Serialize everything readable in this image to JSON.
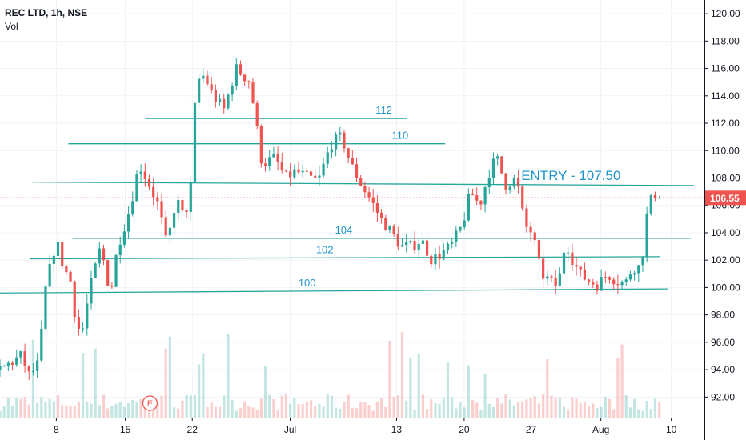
{
  "legend": {
    "symbol": "REC LTD, 1h, NSE",
    "volume_label": "Vol"
  },
  "colors": {
    "up": "#26a69a",
    "down": "#ef5350",
    "line": "#26a69a",
    "label": "#2196c9",
    "price_marker": "#ef5350",
    "grid": "#f0f3fa",
    "axis_text": "#131722",
    "earnings": "#ef5350"
  },
  "chart_data": {
    "type": "candlestick",
    "ylim": [
      90.5,
      121
    ],
    "y_ticks": [
      "92.00",
      "94.00",
      "96.00",
      "98.00",
      "100.00",
      "102.00",
      "104.00",
      "106.00",
      "108.00",
      "110.00",
      "112.00",
      "114.00",
      "116.00",
      "118.00",
      "120.00"
    ],
    "x_ticks": [
      {
        "label": "8",
        "pos": 0.08
      },
      {
        "label": "15",
        "pos": 0.178
      },
      {
        "label": "22",
        "pos": 0.273
      },
      {
        "label": "Jul",
        "pos": 0.412
      },
      {
        "label": "13",
        "pos": 0.563
      },
      {
        "label": "20",
        "pos": 0.659
      },
      {
        "label": "27",
        "pos": 0.754
      },
      {
        "label": "Aug",
        "pos": 0.853
      },
      {
        "label": "10",
        "pos": 0.953
      }
    ],
    "current_price": {
      "label": "106.55",
      "value": 106.55
    },
    "entry_label": "ENTRY - 107.50",
    "earnings_marker": {
      "label": "E",
      "pos": 0.213
    },
    "levels": [
      {
        "label": "112",
        "start": 0.206,
        "end": 0.578,
        "y0": 112.35,
        "y1": 112.35,
        "label_pos": 0.545
      },
      {
        "label": "110",
        "start": 0.097,
        "end": 0.632,
        "y0": 110.5,
        "y1": 110.5,
        "label_pos": 0.568
      },
      {
        "label": "",
        "start": 0.045,
        "end": 0.985,
        "y0": 107.7,
        "y1": 107.45
      },
      {
        "label": "104",
        "start": 0.103,
        "end": 0.98,
        "y0": 103.6,
        "y1": 103.6,
        "label_pos": 0.488
      },
      {
        "label": "102",
        "start": 0.042,
        "end": 0.937,
        "y0": 102.1,
        "y1": 102.25,
        "label_pos": 0.461
      },
      {
        "label": "100",
        "start": 0.0,
        "end": 0.948,
        "y0": 99.6,
        "y1": 99.9,
        "label_pos": 0.436
      }
    ],
    "anchors": [
      [
        0.0,
        94.0
      ],
      [
        0.03,
        95.0
      ],
      [
        0.042,
        93.5
      ],
      [
        0.055,
        94.5
      ],
      [
        0.065,
        100.0
      ],
      [
        0.08,
        103.5
      ],
      [
        0.09,
        101.5
      ],
      [
        0.1,
        100.5
      ],
      [
        0.108,
        97.5
      ],
      [
        0.116,
        96.5
      ],
      [
        0.128,
        100.0
      ],
      [
        0.143,
        103.0
      ],
      [
        0.157,
        99.5
      ],
      [
        0.167,
        103.0
      ],
      [
        0.183,
        105.5
      ],
      [
        0.198,
        109.0
      ],
      [
        0.212,
        107.5
      ],
      [
        0.225,
        106.0
      ],
      [
        0.237,
        103.0
      ],
      [
        0.25,
        106.5
      ],
      [
        0.262,
        105.0
      ],
      [
        0.273,
        108.0
      ],
      [
        0.278,
        115.0
      ],
      [
        0.29,
        115.5
      ],
      [
        0.302,
        114.0
      ],
      [
        0.318,
        113.0
      ],
      [
        0.335,
        116.0
      ],
      [
        0.355,
        115.0
      ],
      [
        0.372,
        109.0
      ],
      [
        0.39,
        109.5
      ],
      [
        0.405,
        108.0
      ],
      [
        0.42,
        108.5
      ],
      [
        0.438,
        108.0
      ],
      [
        0.452,
        107.8
      ],
      [
        0.47,
        110.5
      ],
      [
        0.485,
        111.0
      ],
      [
        0.498,
        109.0
      ],
      [
        0.513,
        107.5
      ],
      [
        0.525,
        106.5
      ],
      [
        0.541,
        105.0
      ],
      [
        0.556,
        104.0
      ],
      [
        0.569,
        103.0
      ],
      [
        0.583,
        103.0
      ],
      [
        0.598,
        103.5
      ],
      [
        0.613,
        102.0
      ],
      [
        0.627,
        102.5
      ],
      [
        0.64,
        103.0
      ],
      [
        0.656,
        104.5
      ],
      [
        0.668,
        107.0
      ],
      [
        0.681,
        106.0
      ],
      [
        0.695,
        108.5
      ],
      [
        0.705,
        109.5
      ],
      [
        0.718,
        107.5
      ],
      [
        0.733,
        108.0
      ],
      [
        0.745,
        104.5
      ],
      [
        0.756,
        104.0
      ],
      [
        0.768,
        101.0
      ],
      [
        0.78,
        100.5
      ],
      [
        0.792,
        100.0
      ],
      [
        0.803,
        103.5
      ],
      [
        0.813,
        102.0
      ],
      [
        0.823,
        101.0
      ],
      [
        0.835,
        100.5
      ],
      [
        0.848,
        100.2
      ],
      [
        0.863,
        101.0
      ],
      [
        0.875,
        100.5
      ],
      [
        0.888,
        100.3
      ],
      [
        0.898,
        101.5
      ],
      [
        0.91,
        101.5
      ],
      [
        0.92,
        106.0
      ],
      [
        0.932,
        107.0
      ],
      [
        0.936,
        106.55
      ]
    ],
    "candle_count": 160
  }
}
